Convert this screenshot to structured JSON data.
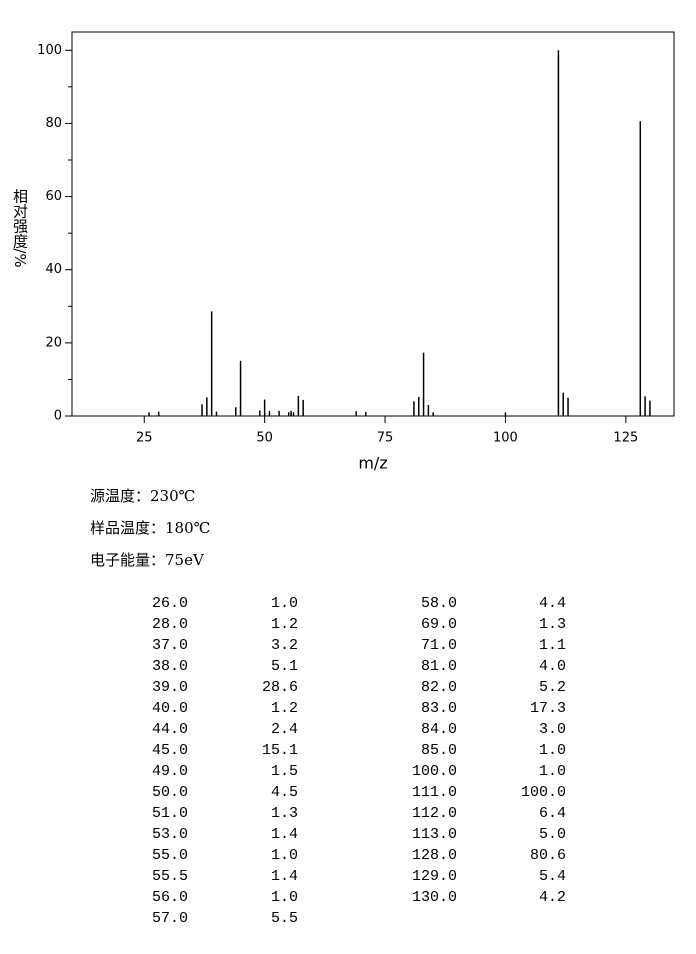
{
  "chart_data": {
    "type": "bar",
    "x_label": "m/z",
    "y_label": "相对强度/%",
    "x": [
      26,
      28,
      37,
      38,
      39,
      40,
      44,
      45,
      49,
      50,
      51,
      53,
      55,
      55.5,
      56,
      57,
      58,
      69,
      71,
      81,
      82,
      83,
      84,
      85,
      100,
      111,
      112,
      113,
      128,
      129,
      130
    ],
    "x_labels": [
      "26.0",
      "28.0",
      "37.0",
      "38.0",
      "39.0",
      "40.0",
      "44.0",
      "45.0",
      "49.0",
      "50.0",
      "51.0",
      "53.0",
      "55.0",
      "55.5",
      "56.0",
      "57.0",
      "58.0",
      "69.0",
      "71.0",
      "81.0",
      "82.0",
      "83.0",
      "84.0",
      "85.0",
      "100.0",
      "111.0",
      "112.0",
      "113.0",
      "128.0",
      "129.0",
      "130.0"
    ],
    "values": [
      1.0,
      1.2,
      3.2,
      5.1,
      28.6,
      1.2,
      2.4,
      15.1,
      1.5,
      4.5,
      1.3,
      1.4,
      1.0,
      1.4,
      1.0,
      5.5,
      4.4,
      1.3,
      1.1,
      4.0,
      5.2,
      17.3,
      3.0,
      1.0,
      1.0,
      100.0,
      6.4,
      5.0,
      80.6,
      5.4,
      4.2
    ],
    "value_labels": [
      "1.0",
      "1.2",
      "3.2",
      "5.1",
      "28.6",
      "1.2",
      "2.4",
      "15.1",
      "1.5",
      "4.5",
      "1.3",
      "1.4",
      "1.0",
      "1.4",
      "1.0",
      "5.5",
      "4.4",
      "1.3",
      "1.1",
      "4.0",
      "5.2",
      "17.3",
      "3.0",
      "1.0",
      "1.0",
      "100.0",
      "6.4",
      "5.0",
      "80.6",
      "5.4",
      "4.2"
    ],
    "color": "#000000",
    "xlim": [
      10,
      135
    ],
    "xticks": [
      25,
      50,
      75,
      100,
      125
    ],
    "ylim": [
      0,
      105
    ],
    "yticks": [
      0,
      20,
      40,
      60,
      80,
      100
    ],
    "yminorticks": [
      10,
      30,
      50,
      70,
      90
    ]
  },
  "notes": [
    "源温度：230℃",
    "样品温度：180℃",
    "电子能量：75eV"
  ]
}
